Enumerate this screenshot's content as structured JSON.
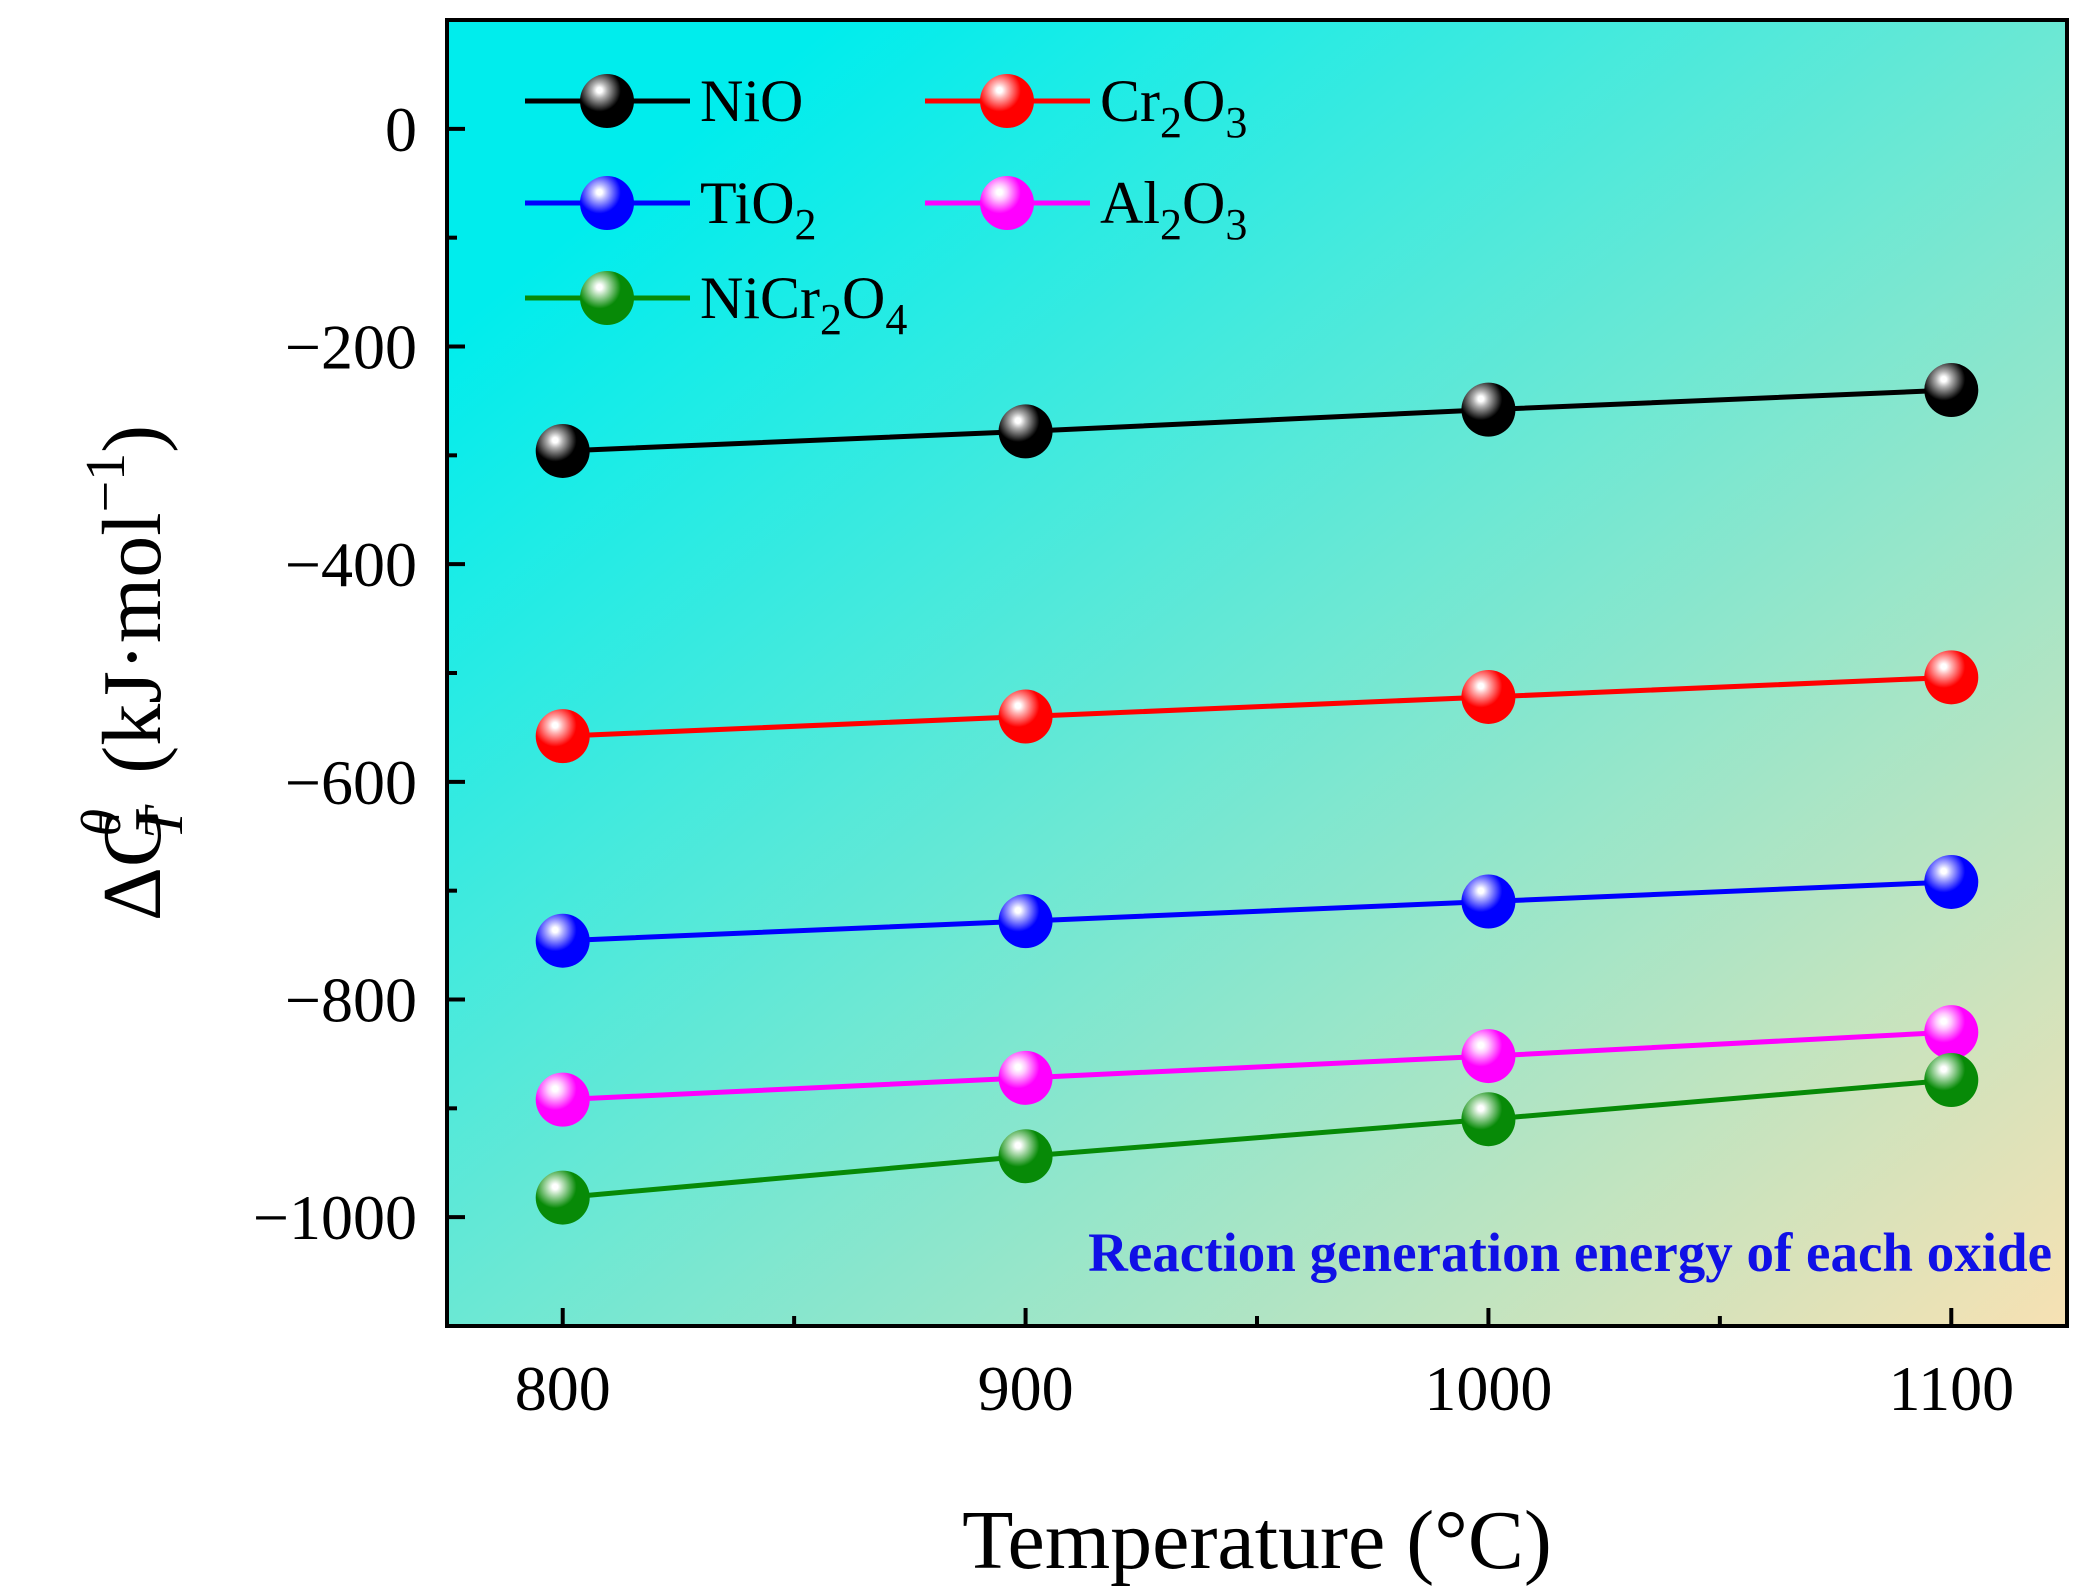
{
  "chart_data": {
    "type": "line",
    "title": "",
    "xlabel": "Temperature (°C)",
    "ylabel": {
      "symbol": "ΔG",
      "subscript": "T",
      "superscript": "θ",
      "units": "(kJ·mol",
      "units_exponent": "−1",
      "units_close": ")"
    },
    "x": [
      800,
      900,
      1000,
      1100
    ],
    "xlim": [
      775,
      1125
    ],
    "ylim": [
      -1100,
      100
    ],
    "x_ticks": [
      800,
      900,
      1000,
      1100
    ],
    "x_tick_labels": [
      "800",
      "900",
      "1000",
      "1100"
    ],
    "y_ticks": [
      0,
      -200,
      -400,
      -600,
      -800,
      -1000
    ],
    "y_tick_labels": [
      "0",
      "−200",
      "−400",
      "−600",
      "−800",
      "−1000"
    ],
    "grid": false,
    "legend_placement": "top-left",
    "background": {
      "gradient_start": "#00eded",
      "gradient_end": "#f7e1b3"
    },
    "series": [
      {
        "name": "NiO",
        "legend_parts": [
          {
            "text": "NiO",
            "sub": false
          }
        ],
        "color": "#000000",
        "highlight": "#b0b0b0",
        "values": [
          -296,
          -278,
          -258,
          -240
        ]
      },
      {
        "name": "Cr2O3",
        "legend_parts": [
          {
            "text": "Cr",
            "sub": false
          },
          {
            "text": "2",
            "sub": true
          },
          {
            "text": "O",
            "sub": false
          },
          {
            "text": "3",
            "sub": true
          }
        ],
        "color": "#ff0000",
        "highlight": "#ffb4b4",
        "values": [
          -558,
          -540,
          -522,
          -504
        ]
      },
      {
        "name": "TiO2",
        "legend_parts": [
          {
            "text": "TiO",
            "sub": false
          },
          {
            "text": "2",
            "sub": true
          }
        ],
        "color": "#0000ff",
        "highlight": "#b4b4ff",
        "values": [
          -746,
          -728,
          -710,
          -692
        ]
      },
      {
        "name": "Al2O3",
        "legend_parts": [
          {
            "text": "Al",
            "sub": false
          },
          {
            "text": "2",
            "sub": true
          },
          {
            "text": "O",
            "sub": false
          },
          {
            "text": "3",
            "sub": true
          }
        ],
        "color": "#ff00ff",
        "highlight": "#ffc8ff",
        "values": [
          -892,
          -872,
          -852,
          -830
        ]
      },
      {
        "name": "NiCr2O4",
        "legend_parts": [
          {
            "text": "NiCr",
            "sub": false
          },
          {
            "text": "2",
            "sub": true
          },
          {
            "text": "O",
            "sub": false
          },
          {
            "text": "4",
            "sub": true
          }
        ],
        "color": "#078a07",
        "highlight": "#b9e0b9",
        "values": [
          -982,
          -944,
          -910,
          -874
        ]
      }
    ],
    "annotation": {
      "text": "Reaction generation energy of each oxide",
      "color": "#1010e6",
      "placement": "bottom-right"
    }
  }
}
